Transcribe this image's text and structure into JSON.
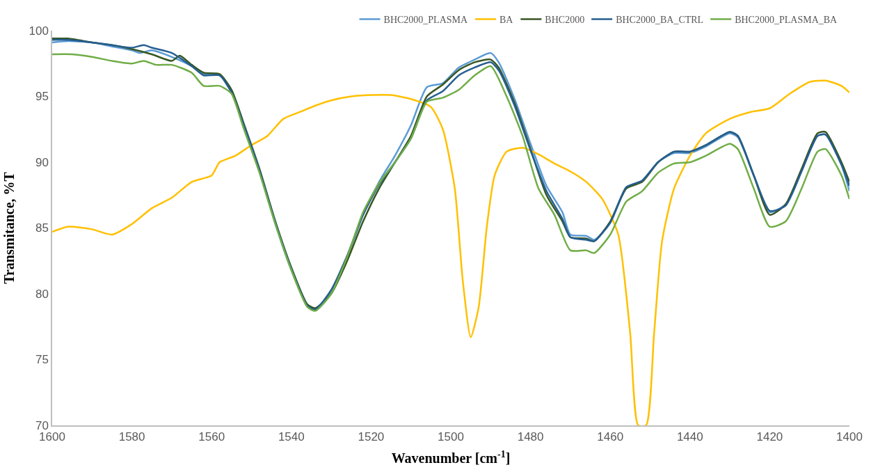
{
  "chart_data": {
    "type": "line",
    "xlabel": "Wavenumber [cm$^{-1}$]",
    "ylabel": "Transmitance, %T",
    "xlim": [
      1600,
      1400
    ],
    "xticks": [
      1600,
      1580,
      1560,
      1540,
      1520,
      1500,
      1480,
      1460,
      1440,
      1420,
      1400
    ],
    "ylim": [
      70,
      100
    ],
    "yticks": [
      70,
      75,
      80,
      85,
      90,
      95,
      100
    ],
    "legend": "top",
    "marker": "none",
    "line_style": "solid",
    "series": [
      {
        "name": "BHC2000_PLASMA",
        "color": "#5b9bd5",
        "x": [
          1600,
          1596,
          1590,
          1585,
          1580,
          1578,
          1575,
          1570,
          1565,
          1562,
          1558,
          1555,
          1552,
          1548,
          1544,
          1540,
          1536,
          1534,
          1530,
          1526,
          1522,
          1518,
          1514,
          1510,
          1506,
          1502,
          1498,
          1494,
          1490,
          1488,
          1484,
          1480,
          1476,
          1472,
          1470,
          1466,
          1464,
          1460,
          1456,
          1452,
          1448,
          1444,
          1440,
          1436,
          1430,
          1428,
          1424,
          1420,
          1416,
          1412,
          1408,
          1406,
          1402,
          1400
        ],
        "values": [
          99.1,
          99.2,
          99.1,
          98.8,
          98.5,
          98.3,
          98.5,
          98.0,
          97.3,
          96.7,
          96.6,
          95.3,
          92.8,
          89.3,
          85.3,
          81.8,
          79.1,
          78.9,
          80.1,
          82.8,
          86.0,
          88.5,
          90.5,
          92.8,
          95.7,
          96.0,
          97.2,
          97.8,
          98.3,
          97.6,
          94.8,
          91.4,
          88.2,
          86.2,
          84.5,
          84.4,
          84.1,
          85.4,
          88.0,
          88.6,
          90.0,
          90.7,
          90.7,
          91.2,
          92.2,
          91.9,
          89.0,
          86.2,
          86.8,
          89.4,
          92.0,
          92.1,
          89.8,
          87.8
        ]
      },
      {
        "name": "BA",
        "color": "#ffc000",
        "x": [
          1600,
          1596,
          1590,
          1585,
          1580,
          1575,
          1570,
          1565,
          1560,
          1558,
          1554,
          1550,
          1546,
          1542,
          1538,
          1534,
          1530,
          1525,
          1520,
          1515,
          1510,
          1505,
          1502,
          1499,
          1497,
          1495,
          1493,
          1491,
          1489,
          1486,
          1482,
          1478,
          1474,
          1470,
          1466,
          1462,
          1458,
          1455,
          1453,
          1451,
          1449,
          1447,
          1444,
          1440,
          1436,
          1430,
          1425,
          1420,
          1415,
          1410,
          1406,
          1402,
          1400
        ],
        "values": [
          84.7,
          85.1,
          84.9,
          84.5,
          85.3,
          86.5,
          87.3,
          88.5,
          89.0,
          90.0,
          90.5,
          91.3,
          92.0,
          93.3,
          93.8,
          94.3,
          94.7,
          95.0,
          95.1,
          95.1,
          94.8,
          94.2,
          92.5,
          88.0,
          81.0,
          76.7,
          79.0,
          85.0,
          89.0,
          90.8,
          91.1,
          90.6,
          89.9,
          89.3,
          88.5,
          87.2,
          84.5,
          77.0,
          70.0,
          70.0,
          77.0,
          84.0,
          88.0,
          90.5,
          92.2,
          93.3,
          93.8,
          94.1,
          95.2,
          96.1,
          96.2,
          95.8,
          95.3
        ]
      },
      {
        "name": "BHC2000",
        "color": "#375623",
        "x": [
          1600,
          1596,
          1590,
          1585,
          1580,
          1575,
          1570,
          1568,
          1565,
          1562,
          1558,
          1555,
          1552,
          1548,
          1544,
          1540,
          1536,
          1534,
          1530,
          1526,
          1522,
          1518,
          1514,
          1510,
          1506,
          1502,
          1498,
          1494,
          1490,
          1488,
          1484,
          1480,
          1476,
          1472,
          1470,
          1466,
          1464,
          1460,
          1456,
          1452,
          1448,
          1444,
          1440,
          1436,
          1430,
          1428,
          1424,
          1420,
          1416,
          1412,
          1408,
          1406,
          1402,
          1400
        ],
        "values": [
          99.4,
          99.4,
          99.1,
          98.9,
          98.6,
          98.2,
          97.7,
          98.1,
          97.4,
          96.8,
          96.7,
          95.5,
          93.0,
          89.5,
          85.5,
          82.0,
          79.2,
          78.9,
          80.0,
          82.5,
          85.5,
          88.0,
          90.0,
          92.0,
          95.0,
          95.9,
          97.0,
          97.6,
          97.8,
          97.2,
          94.5,
          91.0,
          87.5,
          85.5,
          84.3,
          84.2,
          84.0,
          85.5,
          88.0,
          88.5,
          90.0,
          90.8,
          90.8,
          91.3,
          92.3,
          92.0,
          89.0,
          86.0,
          86.8,
          89.5,
          92.2,
          92.3,
          90.0,
          88.5
        ]
      },
      {
        "name": "BHC2000_BA_CTRL",
        "color": "#255e91",
        "x": [
          1600,
          1596,
          1590,
          1585,
          1580,
          1577,
          1575,
          1570,
          1565,
          1562,
          1558,
          1555,
          1552,
          1548,
          1544,
          1540,
          1536,
          1534,
          1530,
          1526,
          1522,
          1518,
          1514,
          1510,
          1506,
          1502,
          1498,
          1494,
          1490,
          1488,
          1484,
          1480,
          1476,
          1472,
          1470,
          1466,
          1464,
          1460,
          1456,
          1452,
          1448,
          1444,
          1440,
          1436,
          1430,
          1428,
          1424,
          1420,
          1416,
          1412,
          1408,
          1406,
          1402,
          1400
        ],
        "values": [
          99.3,
          99.3,
          99.1,
          98.9,
          98.7,
          98.9,
          98.7,
          98.3,
          97.3,
          96.6,
          96.6,
          95.3,
          92.9,
          89.4,
          85.4,
          81.9,
          79.1,
          78.8,
          80.3,
          82.9,
          86.0,
          88.3,
          90.0,
          91.8,
          94.7,
          95.4,
          96.6,
          97.2,
          97.6,
          97.0,
          94.3,
          90.9,
          87.8,
          85.7,
          84.3,
          84.1,
          84.0,
          85.4,
          88.1,
          88.6,
          90.0,
          90.8,
          90.8,
          91.3,
          92.3,
          92.0,
          89.0,
          86.3,
          86.7,
          89.3,
          92.0,
          92.1,
          89.8,
          88.2
        ]
      },
      {
        "name": "BHC2000_PLASMA_BA",
        "color": "#70ad47",
        "x": [
          1600,
          1595,
          1590,
          1585,
          1580,
          1577,
          1574,
          1570,
          1565,
          1562,
          1558,
          1555,
          1552,
          1548,
          1544,
          1540,
          1536,
          1534,
          1530,
          1526,
          1522,
          1518,
          1514,
          1510,
          1506,
          1502,
          1498,
          1494,
          1490,
          1486,
          1482,
          1478,
          1474,
          1470,
          1466,
          1464,
          1460,
          1456,
          1452,
          1448,
          1444,
          1440,
          1436,
          1430,
          1428,
          1424,
          1420,
          1416,
          1412,
          1408,
          1406,
          1402,
          1400
        ],
        "values": [
          98.2,
          98.2,
          98.0,
          97.7,
          97.5,
          97.7,
          97.4,
          97.4,
          96.8,
          95.8,
          95.8,
          95.2,
          92.6,
          89.2,
          85.3,
          81.8,
          79.0,
          78.7,
          80.0,
          82.8,
          86.2,
          88.4,
          90.0,
          91.8,
          94.6,
          94.9,
          95.5,
          96.6,
          97.3,
          95.0,
          92.0,
          88.0,
          86.0,
          83.3,
          83.3,
          83.1,
          84.5,
          87.0,
          87.8,
          89.2,
          89.9,
          90.0,
          90.5,
          91.4,
          91.0,
          88.0,
          85.1,
          85.5,
          88.0,
          90.8,
          91.0,
          89.0,
          87.2
        ]
      }
    ]
  }
}
